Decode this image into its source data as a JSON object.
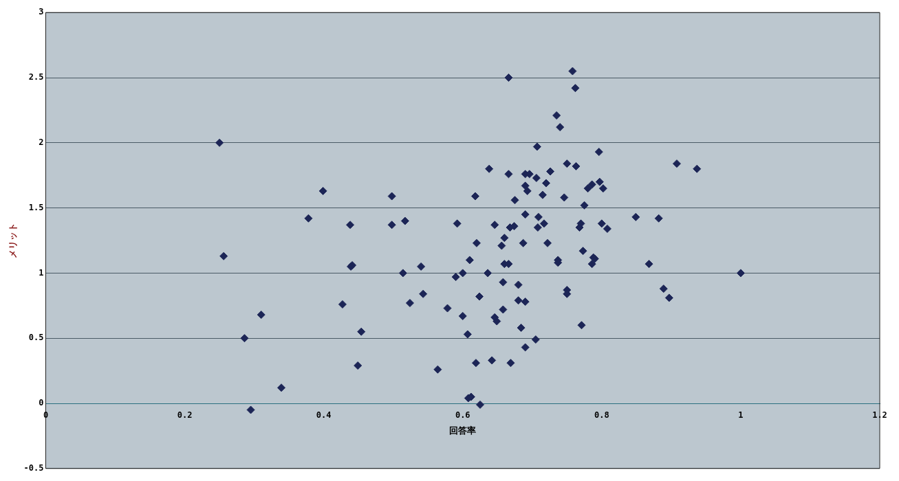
{
  "chart_data": {
    "type": "scatter",
    "xlabel": "回答率",
    "ylabel": "メリット",
    "color": "#1c2556",
    "marker": "diamond",
    "grid": "y",
    "xlim": [
      0,
      1.2
    ],
    "xticks": [
      0,
      0.2,
      0.4,
      0.6,
      0.8,
      1,
      1.2
    ],
    "ylim": [
      -0.5,
      3
    ],
    "yticks": [
      -0.5,
      0,
      0.5,
      1,
      1.5,
      2,
      2.5,
      3
    ],
    "x": [
      0.25,
      0.256,
      0.286,
      0.295,
      0.31,
      0.339,
      0.378,
      0.399,
      0.438,
      0.439,
      0.441,
      0.427,
      0.454,
      0.449,
      0.498,
      0.498,
      0.517,
      0.514,
      0.54,
      0.543,
      0.524,
      0.564,
      0.578,
      0.592,
      0.59,
      0.6,
      0.6,
      0.607,
      0.61,
      0.608,
      0.612,
      0.625,
      0.62,
      0.618,
      0.624,
      0.619,
      0.638,
      0.636,
      0.642,
      0.646,
      0.646,
      0.649,
      0.656,
      0.66,
      0.658,
      0.658,
      0.66,
      0.666,
      0.666,
      0.666,
      0.668,
      0.669,
      0.674,
      0.675,
      0.68,
      0.68,
      0.684,
      0.69,
      0.69,
      0.69,
      0.687,
      0.69,
      0.693,
      0.69,
      0.696,
      0.707,
      0.706,
      0.705,
      0.709,
      0.708,
      0.715,
      0.717,
      0.72,
      0.722,
      0.726,
      0.735,
      0.74,
      0.737,
      0.737,
      0.746,
      0.75,
      0.75,
      0.75,
      0.758,
      0.762,
      0.763,
      0.771,
      0.773,
      0.768,
      0.77,
      0.775,
      0.78,
      0.786,
      0.788,
      0.79,
      0.786,
      0.796,
      0.797,
      0.8,
      0.802,
      0.808,
      0.849,
      0.868,
      0.882,
      0.889,
      0.897,
      0.908,
      0.937,
      1.0
    ],
    "values": [
      2.0,
      1.13,
      0.5,
      -0.05,
      0.68,
      0.12,
      1.42,
      1.63,
      1.37,
      1.05,
      1.06,
      0.76,
      0.55,
      0.29,
      1.59,
      1.37,
      1.4,
      1.0,
      1.05,
      0.84,
      0.77,
      0.26,
      0.73,
      1.38,
      0.97,
      1.0,
      0.67,
      0.53,
      1.1,
      0.04,
      0.05,
      -0.01,
      1.23,
      1.59,
      0.82,
      0.31,
      1.8,
      1.0,
      0.33,
      1.37,
      0.66,
      0.63,
      1.21,
      1.27,
      0.93,
      0.72,
      1.07,
      1.07,
      2.5,
      1.76,
      1.35,
      0.31,
      1.36,
      1.56,
      0.91,
      0.79,
      0.58,
      0.78,
      1.45,
      1.67,
      1.23,
      0.43,
      1.63,
      1.76,
      1.76,
      1.97,
      1.73,
      0.49,
      1.43,
      1.35,
      1.6,
      1.38,
      1.69,
      1.23,
      1.78,
      2.21,
      2.12,
      1.1,
      1.08,
      1.58,
      1.84,
      0.87,
      0.84,
      2.55,
      2.42,
      1.82,
      0.6,
      1.17,
      1.35,
      1.38,
      1.52,
      1.65,
      1.68,
      1.12,
      1.11,
      1.07,
      1.93,
      1.7,
      1.38,
      1.65,
      1.34,
      1.43,
      1.07,
      1.42,
      0.88,
      0.81,
      1.84,
      1.8,
      1.0
    ]
  }
}
